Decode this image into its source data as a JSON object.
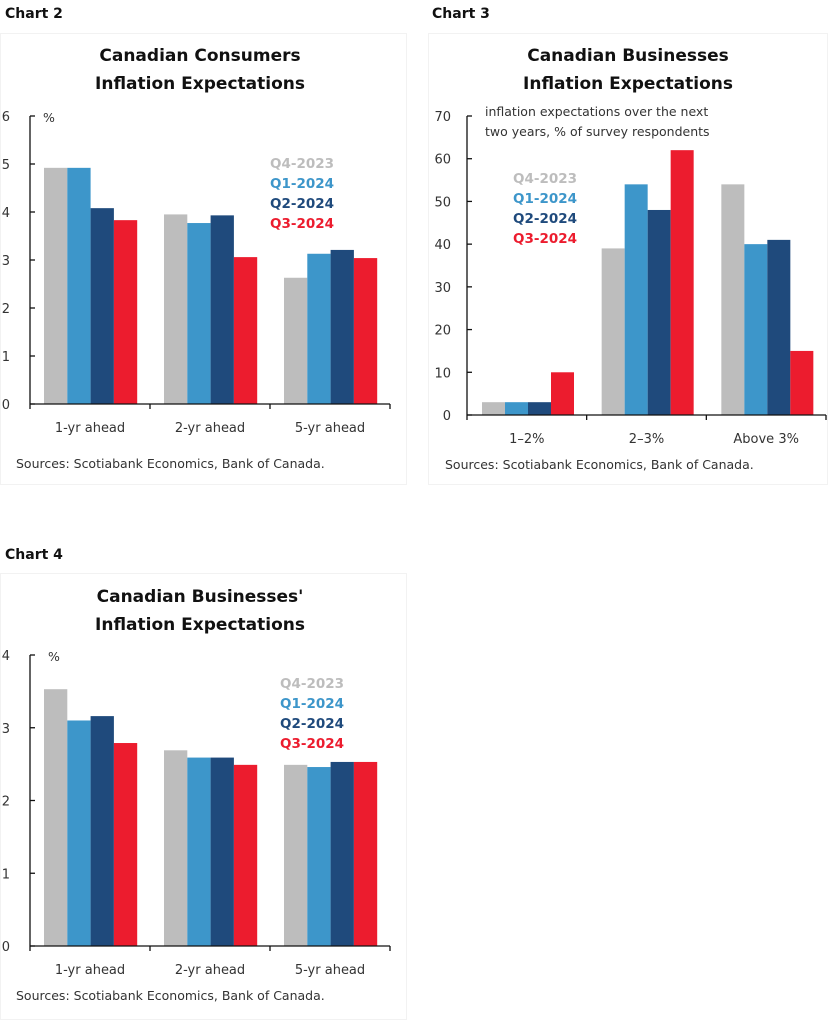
{
  "colors": {
    "Q4-2023": "#bdbdbd",
    "Q1-2024": "#3d96ca",
    "Q2-2024": "#1f4a7c",
    "Q3-2024": "#ec1c2e"
  },
  "chart_data": [
    {
      "id": "chart2",
      "label": "Chart 2",
      "type": "bar",
      "title": [
        "Canadian Consumers",
        "Inflation Expectations"
      ],
      "subtitle": [],
      "ylabel": "%",
      "xlabel": "",
      "ylim": [
        0,
        6
      ],
      "yticks": [
        0,
        1,
        2,
        3,
        4,
        5,
        6
      ],
      "grid": false,
      "legend_position": "top-right",
      "categories": [
        "1-yr ahead",
        "2-yr ahead",
        "5-yr ahead"
      ],
      "series": [
        {
          "name": "Q4-2023",
          "values": [
            4.92,
            3.95,
            2.63
          ]
        },
        {
          "name": "Q1-2024",
          "values": [
            4.92,
            3.77,
            3.13
          ]
        },
        {
          "name": "Q2-2024",
          "values": [
            4.08,
            3.93,
            3.21
          ]
        },
        {
          "name": "Q3-2024",
          "values": [
            3.83,
            3.06,
            3.04
          ]
        }
      ],
      "source": "Sources: Scotiabank Economics, Bank of Canada."
    },
    {
      "id": "chart3",
      "label": "Chart 3",
      "type": "bar",
      "title": [
        "Canadian Businesses",
        "Inflation Expectations"
      ],
      "subtitle": [
        "inflation expectations over the next",
        "two years, % of survey respondents"
      ],
      "ylabel": "",
      "xlabel": "",
      "ylim": [
        0,
        70
      ],
      "yticks": [
        0,
        10,
        20,
        30,
        40,
        50,
        60,
        70
      ],
      "grid": false,
      "legend_position": "top-left",
      "categories": [
        "1–2%",
        "2–3%",
        "Above 3%"
      ],
      "series": [
        {
          "name": "Q4-2023",
          "values": [
            3,
            39,
            54
          ]
        },
        {
          "name": "Q1-2024",
          "values": [
            3,
            54,
            40
          ]
        },
        {
          "name": "Q2-2024",
          "values": [
            3,
            48,
            41
          ]
        },
        {
          "name": "Q3-2024",
          "values": [
            10,
            62,
            15
          ]
        }
      ],
      "source": "Sources: Scotiabank Economics, Bank of Canada."
    },
    {
      "id": "chart4",
      "label": "Chart 4",
      "type": "bar",
      "title": [
        "Canadian Businesses'",
        "Inflation Expectations"
      ],
      "subtitle": [],
      "ylabel": "%",
      "xlabel": "",
      "ylim": [
        0,
        4
      ],
      "yticks": [
        0,
        1,
        2,
        3,
        4
      ],
      "grid": false,
      "legend_position": "top-right",
      "categories": [
        "1-yr ahead",
        "2-yr ahead",
        "5-yr ahead"
      ],
      "series": [
        {
          "name": "Q4-2023",
          "values": [
            3.53,
            2.69,
            2.49
          ]
        },
        {
          "name": "Q1-2024",
          "values": [
            3.1,
            2.59,
            2.46
          ]
        },
        {
          "name": "Q2-2024",
          "values": [
            3.16,
            2.59,
            2.53
          ]
        },
        {
          "name": "Q3-2024",
          "values": [
            2.79,
            2.49,
            2.53
          ]
        }
      ],
      "source": "Sources: Scotiabank Economics, Bank of Canada."
    }
  ]
}
